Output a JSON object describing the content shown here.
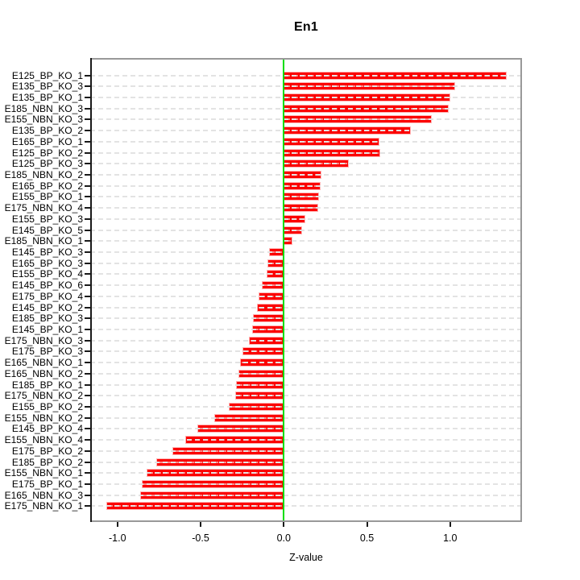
{
  "colors": {
    "bar": "#fb0000",
    "bar_border": "#ffb3b3",
    "zero_line": "#00dd00",
    "grid": "#e3e3e3",
    "box": "#999999",
    "axis": "#1a1a1a",
    "text": "#000000"
  },
  "chart_data": {
    "type": "bar",
    "orientation": "horizontal",
    "title": "En1",
    "xlabel": "Z-value",
    "ylabel": "",
    "xlim": [
      -1.16,
      1.43
    ],
    "grid": true,
    "grid_style": "dashed",
    "zero_line": 0.0,
    "x_ticks": [
      -1.0,
      -0.5,
      0.0,
      0.5,
      1.0
    ],
    "x_tick_labels": [
      "-1.0",
      "-0.5",
      "0.0",
      "0.5",
      "1.0"
    ],
    "categories": [
      "E125_BP_KO_1",
      "E135_BP_KO_3",
      "E135_BP_KO_1",
      "E185_NBN_KO_3",
      "E155_NBN_KO_3",
      "E135_BP_KO_2",
      "E165_BP_KO_1",
      "E125_BP_KO_2",
      "E125_BP_KO_3",
      "E185_NBN_KO_2",
      "E165_BP_KO_2",
      "E155_BP_KO_1",
      "E175_NBN_KO_4",
      "E155_BP_KO_3",
      "E145_BP_KO_5",
      "E185_NBN_KO_1",
      "E145_BP_KO_3",
      "E165_BP_KO_3",
      "E155_BP_KO_4",
      "E145_BP_KO_6",
      "E175_BP_KO_4",
      "E145_BP_KO_2",
      "E185_BP_KO_3",
      "E145_BP_KO_1",
      "E175_NBN_KO_3",
      "E175_BP_KO_3",
      "E165_NBN_KO_1",
      "E165_NBN_KO_2",
      "E185_BP_KO_1",
      "E175_NBN_KO_2",
      "E155_BP_KO_2",
      "E155_NBN_KO_2",
      "E145_BP_KO_4",
      "E155_NBN_KO_4",
      "E175_BP_KO_2",
      "E185_BP_KO_2",
      "E155_NBN_KO_1",
      "E175_BP_KO_1",
      "E165_NBN_KO_3",
      "E175_NBN_KO_1"
    ],
    "values": [
      1.34,
      1.03,
      1.0,
      0.99,
      0.89,
      0.765,
      0.575,
      0.58,
      0.39,
      0.225,
      0.22,
      0.21,
      0.205,
      0.13,
      0.11,
      0.05,
      -0.09,
      -0.1,
      -0.105,
      -0.13,
      -0.15,
      -0.16,
      -0.185,
      -0.19,
      -0.21,
      -0.25,
      -0.265,
      -0.275,
      -0.285,
      -0.29,
      -0.33,
      -0.42,
      -0.52,
      -0.59,
      -0.67,
      -0.765,
      -0.825,
      -0.855,
      -0.865,
      -1.065
    ]
  }
}
